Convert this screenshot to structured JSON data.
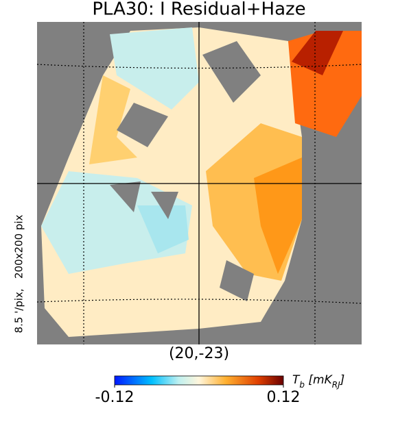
{
  "chart_data": {
    "type": "map",
    "title": "PLA30: I Residual+Haze",
    "xlabel": "(20,-23)",
    "ylabel": "8.5 '/pix,   200x200 pix",
    "colorbar_label_parts": [
      "T",
      "b",
      " [mK",
      "RJ",
      "]"
    ],
    "colorbar_lim": [
      -0.12,
      0.12
    ],
    "colorbar_ticks": [
      -0.12,
      0.12
    ]
  }
}
